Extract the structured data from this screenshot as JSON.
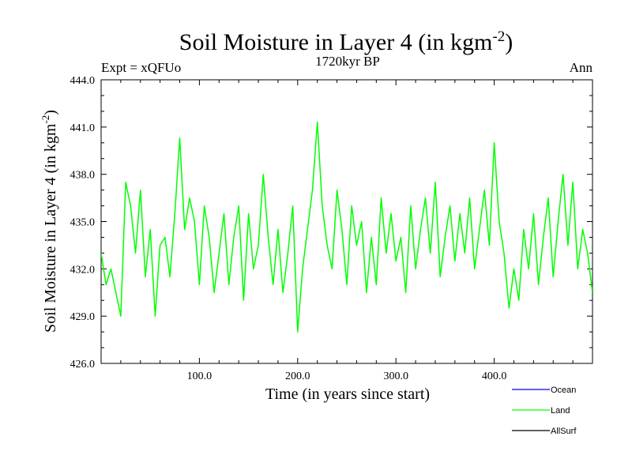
{
  "chart_data": {
    "type": "line",
    "title": "Soil Moisture in Layer 4 (in kgm",
    "title_sup": "-2",
    "title_close": ")",
    "subtitle": "1720kyr BP",
    "left_label": "Expt = xQFUo",
    "right_label": "Ann",
    "xlabel": "Time (in years since start)",
    "ylabel": "Soil Moisture in Layer 4 (in kgm",
    "ylabel_sup": "-2",
    "ylabel_close": ")",
    "xlim": [
      0,
      500
    ],
    "ylim": [
      426,
      444
    ],
    "x_ticks": [
      100,
      200,
      300,
      400
    ],
    "x_tick_labels": [
      "100.0",
      "200.0",
      "300.0",
      "400.0"
    ],
    "y_ticks": [
      426,
      429,
      432,
      435,
      438,
      441,
      444
    ],
    "y_tick_labels": [
      "426.0",
      "429.0",
      "432.0",
      "435.0",
      "438.0",
      "441.0",
      "444.0"
    ],
    "legend": [
      {
        "name": "Ocean",
        "color": "#0000ff"
      },
      {
        "name": "Land",
        "color": "#00ff00"
      },
      {
        "name": "AllSurf",
        "color": "#000000"
      }
    ],
    "series": [
      {
        "name": "Land",
        "color": "#00ff00",
        "x": [
          0,
          5,
          10,
          15,
          20,
          25,
          30,
          35,
          40,
          45,
          50,
          55,
          60,
          65,
          70,
          75,
          80,
          85,
          90,
          95,
          100,
          105,
          110,
          115,
          120,
          125,
          130,
          135,
          140,
          145,
          150,
          155,
          160,
          165,
          170,
          175,
          180,
          185,
          190,
          195,
          200,
          205,
          210,
          215,
          220,
          225,
          230,
          235,
          240,
          245,
          250,
          255,
          260,
          265,
          270,
          275,
          280,
          285,
          290,
          295,
          300,
          305,
          310,
          315,
          320,
          325,
          330,
          335,
          340,
          345,
          350,
          355,
          360,
          365,
          370,
          375,
          380,
          385,
          390,
          395,
          400,
          405,
          410,
          415,
          420,
          425,
          430,
          435,
          440,
          445,
          450,
          455,
          460,
          465,
          470,
          475,
          480,
          485,
          490,
          495,
          500
        ],
        "values": [
          433.0,
          431.0,
          432.0,
          430.5,
          429.0,
          437.5,
          436.0,
          433.0,
          437.0,
          431.5,
          434.5,
          429.0,
          433.5,
          434.0,
          431.5,
          435.5,
          440.3,
          434.5,
          436.5,
          435.0,
          431.0,
          436.0,
          434.0,
          430.5,
          433.0,
          435.5,
          431.0,
          434.0,
          436.0,
          430.0,
          435.5,
          432.0,
          433.5,
          438.0,
          434.0,
          431.0,
          434.5,
          430.5,
          433.0,
          436.0,
          428.0,
          432.0,
          434.5,
          437.0,
          441.3,
          436.0,
          433.5,
          432.0,
          437.0,
          434.5,
          431.0,
          436.0,
          433.5,
          435.0,
          430.5,
          434.0,
          431.0,
          436.5,
          433.0,
          435.5,
          432.5,
          434.0,
          430.5,
          436.0,
          432.0,
          434.5,
          436.5,
          433.0,
          437.5,
          431.5,
          434.0,
          436.0,
          432.5,
          435.5,
          433.0,
          436.5,
          432.0,
          434.5,
          437.0,
          433.5,
          440.0,
          435.0,
          433.0,
          429.5,
          432.0,
          430.0,
          434.5,
          432.0,
          435.5,
          431.0,
          434.0,
          436.5,
          431.5,
          435.0,
          438.0,
          433.5,
          437.5,
          432.0,
          434.5,
          433.0,
          430.5
        ]
      },
      {
        "name": "Ocean",
        "color": "#0000ff",
        "x": [],
        "values": []
      },
      {
        "name": "AllSurf",
        "color": "#000000",
        "x": [],
        "values": []
      }
    ]
  }
}
